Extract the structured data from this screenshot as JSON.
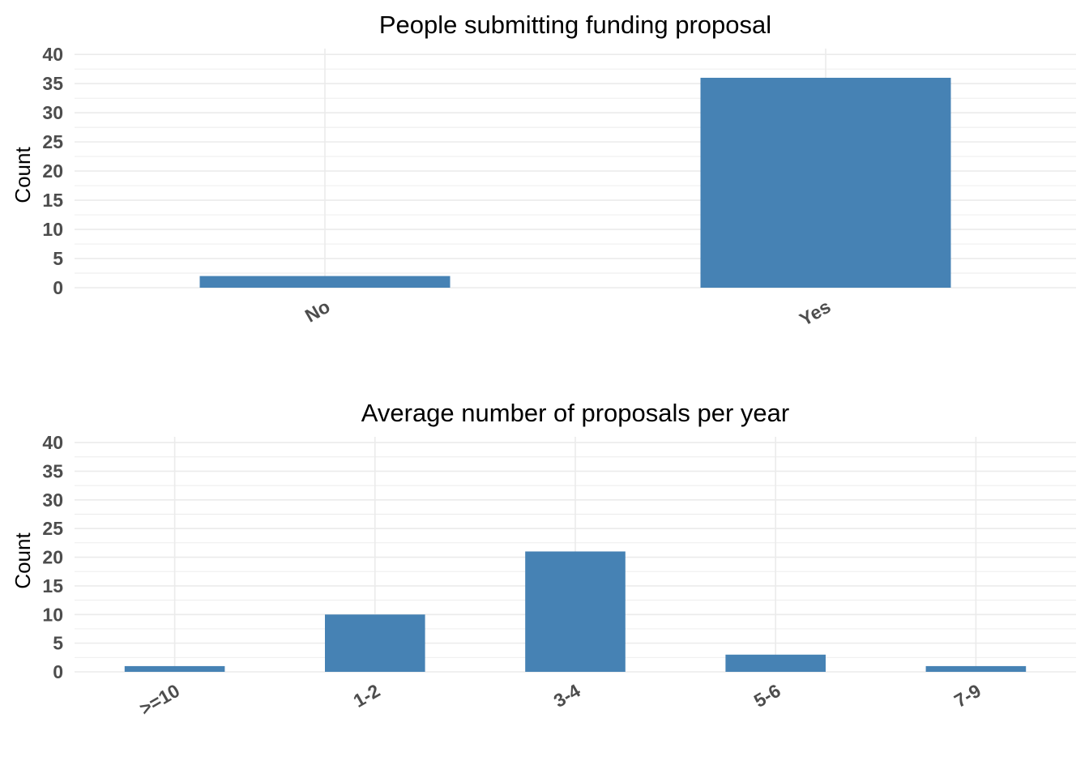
{
  "colors": {
    "bar": "#4682b4",
    "grid": "#ebebeb",
    "tick_text": "#4d4d4d"
  },
  "chart_data": [
    {
      "type": "bar",
      "title": "People submitting funding proposal",
      "xlabel": "",
      "ylabel": "Count",
      "categories": [
        "No",
        "Yes"
      ],
      "values": [
        2,
        36
      ],
      "ylim": [
        0,
        41
      ],
      "yticks": [
        0,
        5,
        10,
        15,
        20,
        25,
        30,
        35,
        40
      ],
      "grid": true,
      "legend": "none"
    },
    {
      "type": "bar",
      "title": "Average number of proposals per year",
      "xlabel": "",
      "ylabel": "Count",
      "categories": [
        ">=10",
        "1-2",
        "3-4",
        "5-6",
        "7-9"
      ],
      "values": [
        1,
        10,
        21,
        3,
        1
      ],
      "ylim": [
        0,
        41
      ],
      "yticks": [
        0,
        5,
        10,
        15,
        20,
        25,
        30,
        35,
        40
      ],
      "grid": true,
      "legend": "none"
    }
  ]
}
